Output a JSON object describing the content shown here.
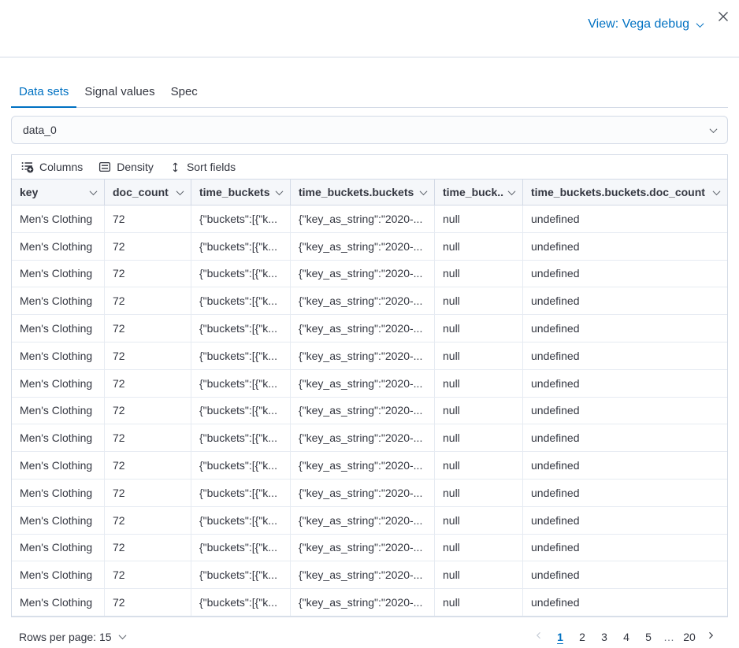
{
  "header": {
    "view_label": "View: Vega debug"
  },
  "tabs": [
    {
      "label": "Data sets",
      "active": true
    },
    {
      "label": "Signal values",
      "active": false
    },
    {
      "label": "Spec",
      "active": false
    }
  ],
  "dataset_select": {
    "value": "data_0"
  },
  "toolbar": {
    "columns_label": "Columns",
    "density_label": "Density",
    "sort_label": "Sort fields"
  },
  "grid": {
    "columns": [
      {
        "label": "key"
      },
      {
        "label": "doc_count"
      },
      {
        "label": "time_buckets"
      },
      {
        "label": "time_buckets.buckets"
      },
      {
        "label": "time_buck..."
      },
      {
        "label": "time_buckets.buckets.doc_count"
      }
    ],
    "row_values": [
      "Men's Clothing",
      "72",
      "{\"buckets\":[{\"k...",
      "{\"key_as_string\":\"2020-...",
      "null",
      "undefined"
    ],
    "row_count": 15
  },
  "pagination": {
    "rows_per_page_label": "Rows per page: 15",
    "pages": [
      "1",
      "2",
      "3",
      "4",
      "5",
      "…",
      "20"
    ],
    "active_page": "1"
  },
  "colors": {
    "primary": "#0071c2",
    "text": "#343741",
    "border": "#d3dae6",
    "header_bg": "#f5f7fa"
  }
}
